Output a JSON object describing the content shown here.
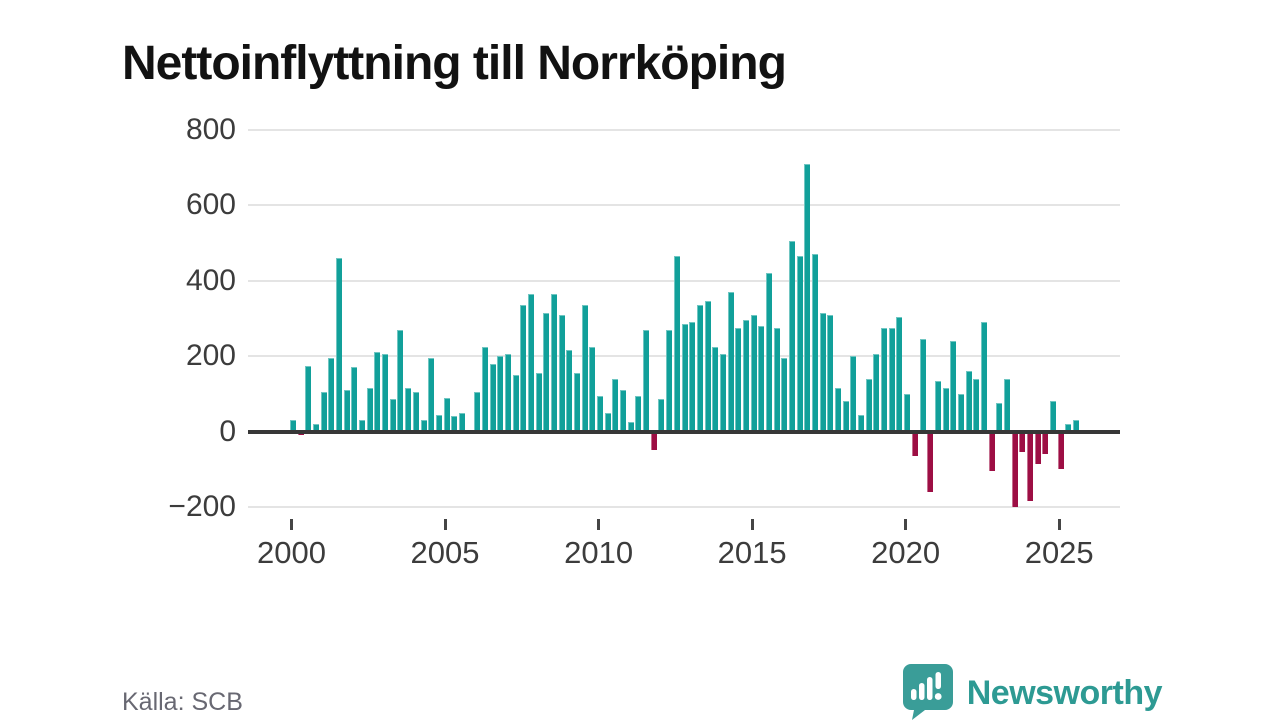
{
  "title": "Nettoinflyttning till Norrköping",
  "footer": {
    "source": "Källa: SCB"
  },
  "branding": {
    "name": "Newsworthy",
    "icon": "newsworthy-speech-bubble-bar-chart-icon"
  },
  "colors": {
    "positive_bar": "#11a09a",
    "negative_bar": "#9d0e44",
    "zero_axis": "#373737",
    "grid": "#e4e4e4",
    "tick_text": "#3c3c3c",
    "source_text": "#686872",
    "brand_teal": "#2d9a93",
    "title_text": "#121212"
  },
  "chart_data": {
    "type": "bar",
    "title": "Nettoinflyttning till Norrköping",
    "xlabel": "",
    "ylabel": "",
    "grid": true,
    "legend": "none",
    "frequency": "quarterly",
    "start_period": "2000 Q1",
    "end_period": "2025 Q3",
    "ylim": [
      -260,
      820
    ],
    "y_ticks": [
      800,
      600,
      400,
      200,
      0,
      -200
    ],
    "y_tick_labels": [
      "800",
      "600",
      "400",
      "200",
      "0",
      "−200"
    ],
    "x_ticks": [
      2000,
      2005,
      2010,
      2015,
      2020,
      2025
    ],
    "x_tick_labels": [
      "2000",
      "2005",
      "2010",
      "2015",
      "2020",
      "2025"
    ],
    "values": [
      30,
      -10,
      175,
      20,
      105,
      195,
      460,
      110,
      170,
      30,
      115,
      210,
      205,
      85,
      270,
      115,
      105,
      30,
      195,
      45,
      90,
      40,
      50,
      5,
      105,
      225,
      180,
      200,
      205,
      150,
      335,
      365,
      155,
      315,
      365,
      310,
      215,
      155,
      335,
      225,
      95,
      50,
      140,
      110,
      25,
      95,
      270,
      -50,
      85,
      270,
      465,
      285,
      290,
      335,
      345,
      225,
      205,
      370,
      275,
      295,
      310,
      280,
      420,
      275,
      195,
      505,
      465,
      710,
      470,
      315,
      310,
      115,
      80,
      200,
      45,
      140,
      205,
      275,
      275,
      305,
      100,
      -65,
      245,
      -160,
      135,
      115,
      240,
      100,
      160,
      140,
      290,
      -105,
      75,
      140,
      -200,
      -55,
      -185,
      -85,
      -60,
      80,
      -100,
      20,
      30
    ]
  }
}
